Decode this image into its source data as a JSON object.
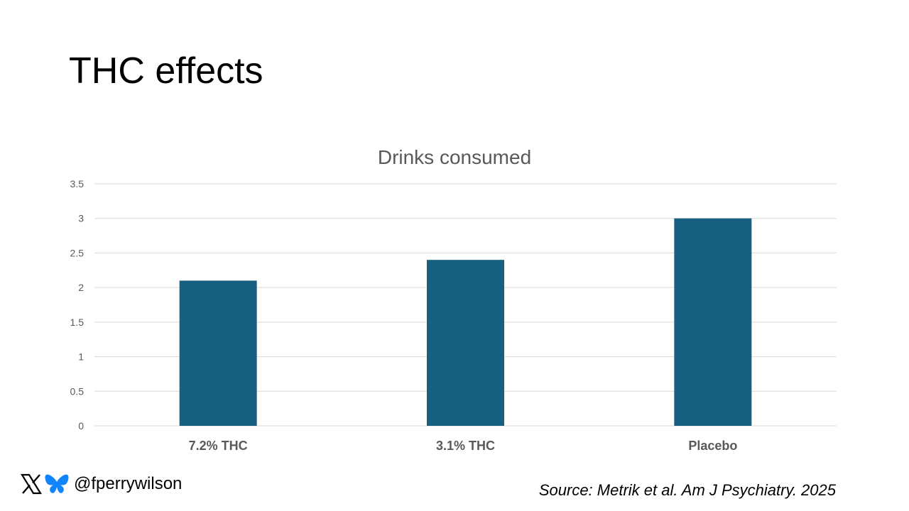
{
  "slide": {
    "title": "THC effects"
  },
  "chart_data": {
    "type": "bar",
    "title": "Drinks consumed",
    "categories": [
      "7.2% THC",
      "3.1% THC",
      "Placebo"
    ],
    "values": [
      2.1,
      2.4,
      3.0
    ],
    "yticks": [
      "0",
      "0.5",
      "1",
      "1.5",
      "2",
      "2.5",
      "3",
      "3.5"
    ],
    "ylim": [
      0,
      3.5
    ],
    "xlabel": "",
    "ylabel": "",
    "grid": true,
    "bar_color": "#17607f"
  },
  "footer": {
    "handle": "@fperrywilson",
    "icons": [
      "x-logo-icon",
      "butterfly-icon"
    ],
    "source": "Source: Metrik et al. Am J Psychiatry. 2025"
  },
  "colors": {
    "bar": "#17607f",
    "bluesky": "#1185fe"
  }
}
